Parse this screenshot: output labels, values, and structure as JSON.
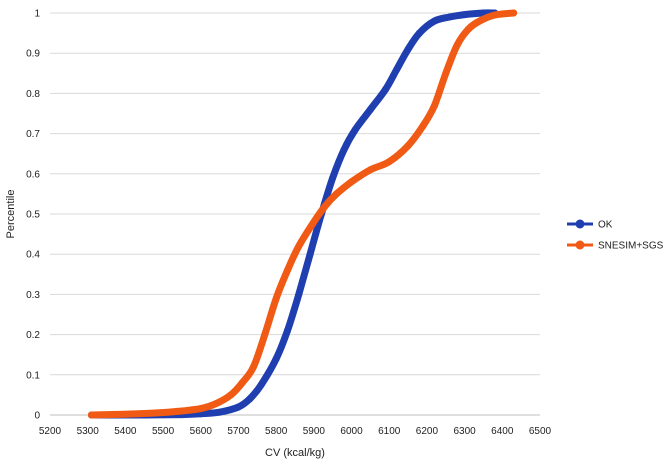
{
  "colors": {
    "ok": "#1f3fb0",
    "snesim": "#f05a14",
    "grid": "#d9d9d9",
    "text": "#222222"
  },
  "chart_data": {
    "type": "line",
    "title": "",
    "xlabel": "CV (kcal/kg)",
    "ylabel": "Percentile",
    "xlim": [
      5200,
      6500
    ],
    "ylim": [
      0,
      1
    ],
    "x_ticks": [
      "5200",
      "5300",
      "5400",
      "5500",
      "5600",
      "5700",
      "5800",
      "5900",
      "6000",
      "6100",
      "6200",
      "6300",
      "6400",
      "6500"
    ],
    "y_ticks": [
      "0",
      "0.1",
      "0.2",
      "0.3",
      "0.4",
      "0.5",
      "0.6",
      "0.7",
      "0.8",
      "0.9",
      "1"
    ],
    "grid": "horizontal",
    "legend": "right",
    "series": [
      {
        "name": "OK",
        "color": "#1f3fb0",
        "points": [
          [
            5310,
            0
          ],
          [
            5450,
            0
          ],
          [
            5550,
            0.001
          ],
          [
            5600,
            0.003
          ],
          [
            5650,
            0.007
          ],
          [
            5700,
            0.02
          ],
          [
            5730,
            0.04
          ],
          [
            5760,
            0.075
          ],
          [
            5800,
            0.14
          ],
          [
            5830,
            0.21
          ],
          [
            5860,
            0.3
          ],
          [
            5890,
            0.4
          ],
          [
            5920,
            0.5
          ],
          [
            5950,
            0.59
          ],
          [
            5980,
            0.66
          ],
          [
            6010,
            0.71
          ],
          [
            6050,
            0.76
          ],
          [
            6090,
            0.81
          ],
          [
            6120,
            0.86
          ],
          [
            6150,
            0.91
          ],
          [
            6180,
            0.95
          ],
          [
            6220,
            0.98
          ],
          [
            6260,
            0.99
          ],
          [
            6300,
            0.996
          ],
          [
            6350,
            1
          ],
          [
            6380,
            1
          ]
        ]
      },
      {
        "name": "SNESIM+SGS",
        "color": "#f05a14",
        "points": [
          [
            5310,
            0
          ],
          [
            5400,
            0.002
          ],
          [
            5480,
            0.005
          ],
          [
            5550,
            0.01
          ],
          [
            5600,
            0.016
          ],
          [
            5640,
            0.028
          ],
          [
            5680,
            0.05
          ],
          [
            5710,
            0.08
          ],
          [
            5740,
            0.12
          ],
          [
            5770,
            0.2
          ],
          [
            5800,
            0.29
          ],
          [
            5830,
            0.36
          ],
          [
            5860,
            0.42
          ],
          [
            5900,
            0.48
          ],
          [
            5930,
            0.52
          ],
          [
            5960,
            0.55
          ],
          [
            6000,
            0.58
          ],
          [
            6050,
            0.61
          ],
          [
            6100,
            0.63
          ],
          [
            6150,
            0.67
          ],
          [
            6190,
            0.72
          ],
          [
            6220,
            0.77
          ],
          [
            6250,
            0.85
          ],
          [
            6280,
            0.92
          ],
          [
            6310,
            0.96
          ],
          [
            6340,
            0.98
          ],
          [
            6380,
            0.995
          ],
          [
            6430,
            1
          ]
        ]
      }
    ]
  }
}
